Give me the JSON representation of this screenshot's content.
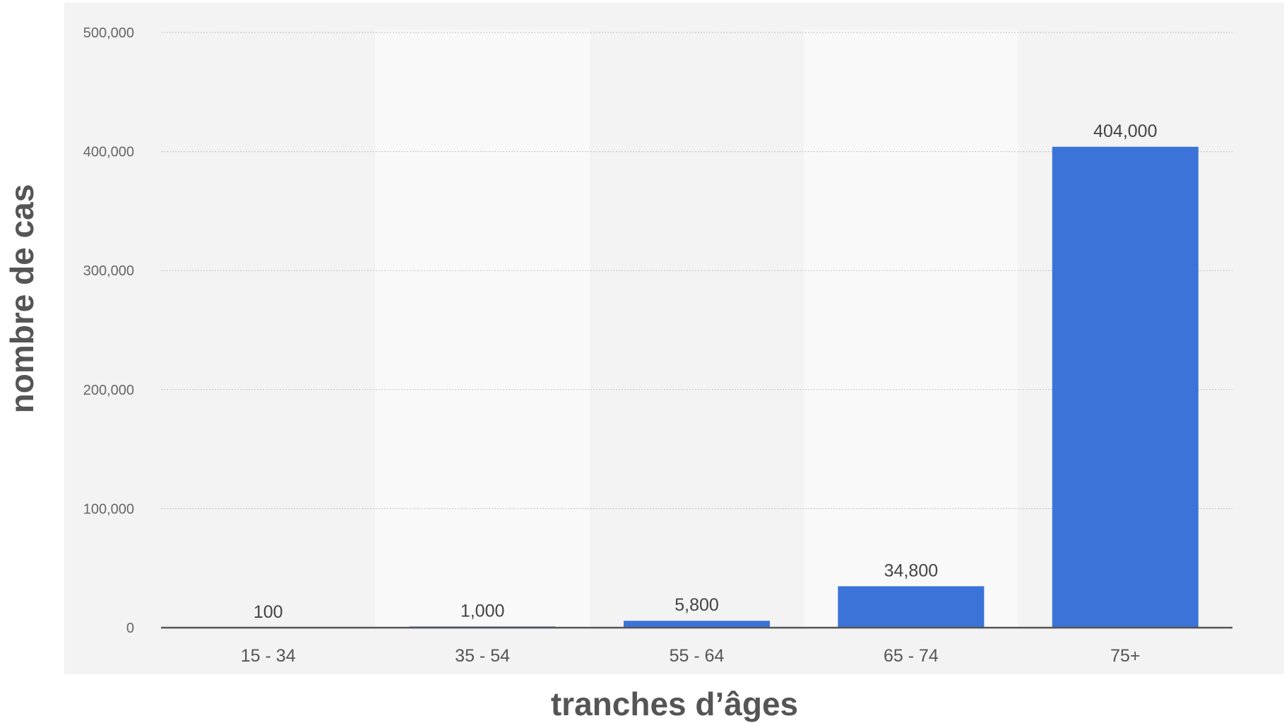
{
  "chart_data": {
    "type": "bar",
    "categories": [
      "15 - 34",
      "35 - 54",
      "55 - 64",
      "65 - 74",
      "75+"
    ],
    "values": [
      100,
      1000,
      5800,
      34800,
      404000
    ],
    "data_labels": [
      "100",
      "1,000",
      "5,800",
      "34,800",
      "404,000"
    ],
    "y_ticks": [
      0,
      100000,
      200000,
      300000,
      400000,
      500000
    ],
    "y_tick_labels": [
      "0",
      "100,000",
      "200,000",
      "300,000",
      "400,000",
      "500,000"
    ],
    "xlabel": "tranches d’âges",
    "ylabel": "nombre de cas",
    "ylim": [
      0,
      500000
    ],
    "grid": true,
    "legend": "none",
    "colors": {
      "bar": "#3b73d9",
      "band_light": "#f9f9f9",
      "band_dark": "#f3f3f3",
      "grid": "#c8c8c8",
      "axis": "#555555"
    }
  }
}
